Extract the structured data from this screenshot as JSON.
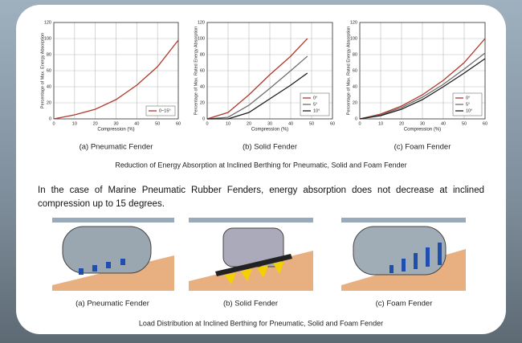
{
  "chart_data": [
    {
      "type": "line",
      "title": "(a) Pneumatic Fender",
      "x_label": "Compression (%)",
      "y_label": "Percentage of Max. Energy Absorption",
      "x": [
        0,
        10,
        20,
        30,
        40,
        50,
        60
      ],
      "series": [
        {
          "name": "0~15°",
          "color": "#b0382c",
          "values": [
            0,
            5,
            12,
            24,
            42,
            65,
            98
          ]
        }
      ],
      "xlim": [
        0,
        60
      ],
      "xticks": [
        0,
        10,
        20,
        30,
        40,
        50,
        60
      ],
      "ylim": [
        0,
        120
      ],
      "yticks": [
        0,
        20,
        40,
        60,
        80,
        100,
        120
      ],
      "grid": true,
      "legend": "lower right"
    },
    {
      "type": "line",
      "title": "(b) Solid Fender",
      "x_label": "Compression (%)",
      "y_label": "Percentage of Max. Rated Energy Absorption",
      "x": [
        0,
        10,
        20,
        30,
        40,
        48
      ],
      "series": [
        {
          "name": "0°",
          "color": "#b0382c",
          "values": [
            0,
            8,
            30,
            55,
            78,
            100
          ]
        },
        {
          "name": "5°",
          "color": "#6e6e6e",
          "values": [
            0,
            2,
            17,
            38,
            60,
            78
          ]
        },
        {
          "name": "10°",
          "color": "#1e1e1e",
          "values": [
            0,
            0,
            8,
            25,
            42,
            57
          ]
        }
      ],
      "xlim": [
        0,
        60
      ],
      "xticks": [
        0,
        10,
        20,
        30,
        40,
        50,
        60
      ],
      "ylim": [
        0,
        120
      ],
      "yticks": [
        0,
        20,
        40,
        60,
        80,
        100,
        120
      ],
      "grid": true,
      "legend": "lower right"
    },
    {
      "type": "line",
      "title": "(c) Foam Fender",
      "x_label": "Compression (%)",
      "y_label": "Percentage of Max. Rated Energy Absorption",
      "x": [
        0,
        10,
        20,
        30,
        40,
        50,
        60
      ],
      "series": [
        {
          "name": "0°",
          "color": "#b0382c",
          "values": [
            0,
            6,
            16,
            30,
            48,
            70,
            100
          ]
        },
        {
          "name": "5°",
          "color": "#6e6e6e",
          "values": [
            0,
            5,
            14,
            27,
            43,
            62,
            82
          ]
        },
        {
          "name": "10°",
          "color": "#1e1e1e",
          "values": [
            0,
            4,
            12,
            24,
            40,
            57,
            75
          ]
        }
      ],
      "xlim": [
        0,
        60
      ],
      "xticks": [
        0,
        10,
        20,
        30,
        40,
        50,
        60
      ],
      "ylim": [
        0,
        120
      ],
      "yticks": [
        0,
        20,
        40,
        60,
        80,
        100,
        120
      ],
      "grid": true,
      "legend": "lower right"
    }
  ],
  "caption": "Reduction of Energy Absorption at Inclined Berthing for Pneumatic, Solid and Foam Fender",
  "paragraph": "In the case of  Marine  Pneumatic Rubber Fenders, energy absorption does not decrease at inclined compression up to 15 degrees.",
  "diagrams": [
    {
      "label": "(a) Pneumatic Fender"
    },
    {
      "label": "(b) Solid Fender"
    },
    {
      "label": "(c) Foam Fender"
    }
  ],
  "diagram_caption": "Load Distribution at Inclined Berthing for Pneumatic, Solid and Foam Fender"
}
